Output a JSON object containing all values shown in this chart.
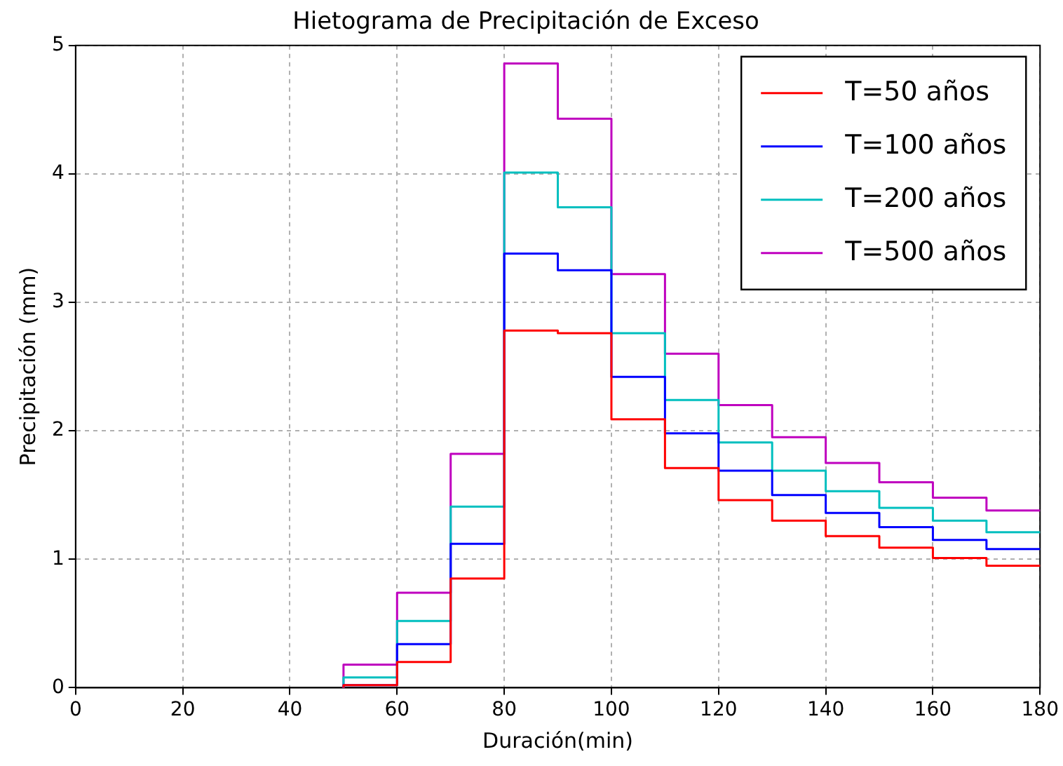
{
  "chart_data": {
    "type": "step",
    "title": "Hietograma de Precipitación de Exceso",
    "xlabel": "Duración(min)",
    "ylabel": "Precipitación (mm)",
    "x": [
      50,
      60,
      70,
      80,
      90,
      100,
      110,
      120,
      130,
      140,
      150,
      160,
      170,
      180
    ],
    "xlim": [
      0,
      180
    ],
    "xticks": [
      0,
      20,
      40,
      60,
      80,
      100,
      120,
      140,
      160,
      180
    ],
    "ylim": [
      0,
      5
    ],
    "yticks": [
      0,
      1,
      2,
      3,
      4,
      5
    ],
    "grid": true,
    "legend": "top right",
    "series": [
      {
        "name": "T=50 años",
        "color": "#ff0000",
        "values": [
          0,
          0.02,
          0.2,
          0.85,
          2.78,
          2.76,
          2.09,
          1.71,
          1.46,
          1.3,
          1.18,
          1.09,
          1.01,
          0.95
        ]
      },
      {
        "name": "T=100 años",
        "color": "#0000ff",
        "values": [
          0,
          0.02,
          0.34,
          1.12,
          3.38,
          3.25,
          2.42,
          1.98,
          1.69,
          1.5,
          1.36,
          1.25,
          1.15,
          1.08
        ]
      },
      {
        "name": "T=200 años",
        "color": "#00bfbf",
        "values": [
          0,
          0.08,
          0.52,
          1.41,
          4.01,
          3.74,
          2.76,
          2.24,
          1.91,
          1.69,
          1.53,
          1.4,
          1.3,
          1.21
        ]
      },
      {
        "name": "T=500 años",
        "color": "#bf00bf",
        "values": [
          0,
          0.18,
          0.74,
          1.82,
          4.86,
          4.43,
          3.22,
          2.6,
          2.2,
          1.95,
          1.75,
          1.6,
          1.48,
          1.38
        ]
      }
    ]
  }
}
